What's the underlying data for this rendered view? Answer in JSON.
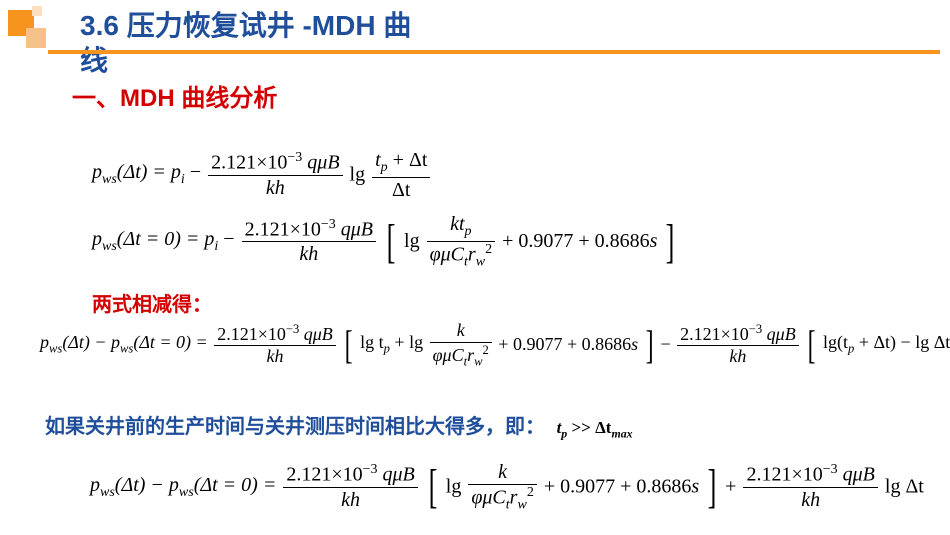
{
  "colors": {
    "title_blue": "#1f4e9b",
    "accent_orange": "#f7941d",
    "red": "#d40000",
    "black": "#000000",
    "bg": "#ffffff"
  },
  "title": {
    "line1": "3.6 压力恢复试井 -MDH 曲",
    "line2": "线",
    "fontsize": 28
  },
  "subhead": {
    "bullet": "一、",
    "text": "MDH 曲线分析",
    "fontsize": 24
  },
  "constants": {
    "coef": "2.121×10",
    "coef_exp": "−3",
    "c1": "0.9077",
    "c2": "0.8686"
  },
  "eq1": {
    "lhs": "p",
    "lhs_sub": "ws",
    "arg": "(Δt) = p",
    "pi_sub": "i",
    "minus": " − ",
    "num_tail": " qμB",
    "den": "kh",
    "lg": "lg",
    "frac2_num_a": "t",
    "frac2_num_a_sub": "p",
    "frac2_num_b": " + Δt",
    "frac2_den": "Δt"
  },
  "eq2": {
    "lhs_a": "p",
    "lhs_a_sub": "ws",
    "lhs_b": "(Δt = 0) = p",
    "pi_sub": "i",
    "minus": " − ",
    "num_tail": " qμB",
    "den": "kh",
    "inside_lg": "lg",
    "f_num": "kt",
    "f_num_sub": "p",
    "f_den_a": "φμC",
    "f_den_a_sub": "t",
    "f_den_b": "r",
    "f_den_b_sub": "w",
    "f_den_b_sup": "2",
    "plus1": " + ",
    "plus2": " + ",
    "s": "s"
  },
  "note_red": "两式相减得：",
  "eq3": {
    "lhs_a": "p",
    "lhs_a_sub": "ws",
    "lhs_b": "(Δt) − p",
    "lhs_c_sub": "ws",
    "lhs_d": "(Δt = 0) = ",
    "num_tail": " qμB",
    "den": "kh",
    "br_lg1": "lg t",
    "br_lg1_sub": "p",
    "br_plus": " + lg",
    "f_num": "k",
    "f_den_a": "φμC",
    "f_den_a_sub": "t",
    "f_den_b": "r",
    "f_den_b_sub": "w",
    "f_den_b_sup": "2",
    "plus1": " + ",
    "plus2": " + ",
    "s": "s",
    "minus2": " − ",
    "tail_lg": "lg(t",
    "tail_lg_sub": "p",
    "tail_lg_b": " + Δt) − lg Δt"
  },
  "note_blue": "如果关井前的生产时间与关井测压时间相比大得多，即：",
  "cond": {
    "a": "t",
    "a_sub": "p",
    "op": " >> Δt",
    "b_sub": "max"
  },
  "eq4": {
    "lhs_a": "p",
    "lhs_a_sub": "ws",
    "lhs_b": "(Δt) − p",
    "lhs_c_sub": "ws",
    "lhs_d": "(Δt = 0) = ",
    "num_tail": " qμB",
    "den": "kh",
    "br_lg": "lg",
    "f_num": "k",
    "f_den_a": "φμC",
    "f_den_a_sub": "t",
    "f_den_b": "r",
    "f_den_b_sub": "w",
    "f_den_b_sup": "2",
    "plus1": " + ",
    "plus2": " + ",
    "s": "s",
    "plus3": " + ",
    "tail_lg": "lg Δt"
  }
}
